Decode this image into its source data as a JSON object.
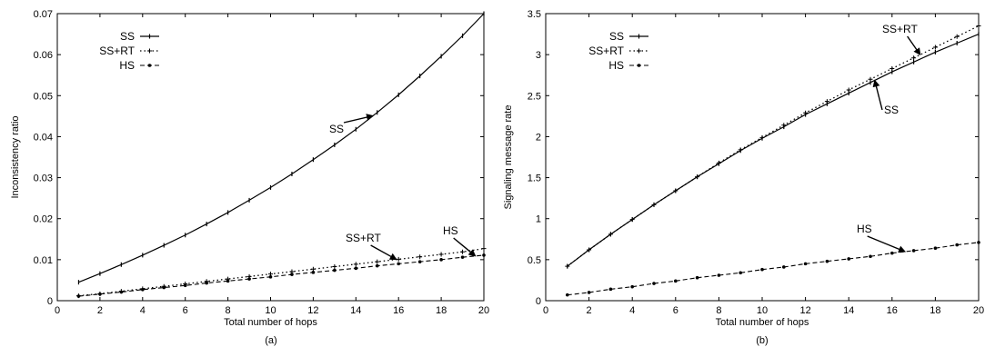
{
  "chart_data": [
    {
      "type": "line",
      "caption": "(a)",
      "xlabel": "Total number of hops",
      "ylabel": "Inconsistency ratio",
      "xlim": [
        0,
        20
      ],
      "ylim": [
        0,
        0.07
      ],
      "xticks": [
        0,
        2,
        4,
        6,
        8,
        10,
        12,
        14,
        16,
        18,
        20
      ],
      "xtick_labels": [
        "0",
        "2",
        "4",
        "6",
        "8",
        "10",
        "12",
        "14",
        "16",
        "18",
        "20"
      ],
      "yticks": [
        0,
        0.01,
        0.02,
        0.03,
        0.04,
        0.05,
        0.06,
        0.07
      ],
      "ytick_labels": [
        "0",
        "0.01",
        "0.02",
        "0.03",
        "0.04",
        "0.05",
        "0.06",
        "0.07"
      ],
      "grid": false,
      "legend_position": "top-left",
      "x": [
        1,
        2,
        3,
        4,
        5,
        6,
        7,
        8,
        9,
        10,
        11,
        12,
        13,
        14,
        15,
        16,
        17,
        18,
        19,
        20
      ],
      "series": [
        {
          "name": "SS",
          "style": "solid",
          "marker": "tick",
          "values": [
            0.0045,
            0.0066,
            0.0088,
            0.0111,
            0.0135,
            0.016,
            0.0187,
            0.0215,
            0.0245,
            0.0276,
            0.0309,
            0.0344,
            0.038,
            0.0418,
            0.0459,
            0.0502,
            0.0548,
            0.0596,
            0.0646,
            0.07
          ]
        },
        {
          "name": "SS+RT",
          "style": "dotted",
          "marker": "plus",
          "values": [
            0.0012,
            0.0017,
            0.0023,
            0.0029,
            0.0035,
            0.0041,
            0.0047,
            0.0053,
            0.0059,
            0.0065,
            0.0071,
            0.0077,
            0.0083,
            0.0089,
            0.0095,
            0.0101,
            0.0107,
            0.0113,
            0.0119,
            0.0127
          ]
        },
        {
          "name": "HS",
          "style": "dashed",
          "marker": "dot",
          "values": [
            0.0011,
            0.0016,
            0.0021,
            0.0027,
            0.0032,
            0.0037,
            0.0043,
            0.0048,
            0.0053,
            0.0058,
            0.0064,
            0.0069,
            0.0074,
            0.0079,
            0.0085,
            0.009,
            0.0095,
            0.01,
            0.0106,
            0.0111
          ]
        }
      ],
      "annotations": [
        {
          "text": "SS",
          "series": "SS",
          "x": 14.8
        },
        {
          "text": "SS+RT",
          "series": "SS+RT",
          "x": 15.9
        },
        {
          "text": "HS",
          "series": "HS",
          "x": 19.6
        }
      ]
    },
    {
      "type": "line",
      "caption": "(b)",
      "xlabel": "Total number of hops",
      "ylabel": "Signaling message rate",
      "xlim": [
        0,
        20
      ],
      "ylim": [
        0,
        3.5
      ],
      "xticks": [
        0,
        2,
        4,
        6,
        8,
        10,
        12,
        14,
        16,
        18,
        20
      ],
      "xtick_labels": [
        "0",
        "2",
        "4",
        "6",
        "8",
        "10",
        "12",
        "14",
        "16",
        "18",
        "20"
      ],
      "yticks": [
        0,
        0.5,
        1,
        1.5,
        2,
        2.5,
        3,
        3.5
      ],
      "ytick_labels": [
        "0",
        "0.5",
        "1",
        "1.5",
        "2",
        "2.5",
        "3",
        "3.5"
      ],
      "grid": false,
      "legend_position": "top-left",
      "x": [
        1,
        2,
        3,
        4,
        5,
        6,
        7,
        8,
        9,
        10,
        11,
        12,
        13,
        14,
        15,
        16,
        17,
        18,
        19,
        20
      ],
      "series": [
        {
          "name": "SS",
          "style": "solid",
          "marker": "tick",
          "values": [
            0.42,
            0.62,
            0.81,
            0.99,
            1.17,
            1.34,
            1.51,
            1.67,
            1.83,
            1.98,
            2.12,
            2.27,
            2.4,
            2.53,
            2.66,
            2.79,
            2.91,
            3.03,
            3.14,
            3.25
          ]
        },
        {
          "name": "SS+RT",
          "style": "dotted",
          "marker": "plus",
          "values": [
            0.42,
            0.62,
            0.81,
            0.99,
            1.17,
            1.34,
            1.51,
            1.68,
            1.84,
            1.99,
            2.14,
            2.29,
            2.43,
            2.57,
            2.7,
            2.83,
            2.96,
            3.09,
            3.22,
            3.35
          ]
        },
        {
          "name": "HS",
          "style": "dashed",
          "marker": "dot",
          "values": [
            0.07,
            0.1,
            0.14,
            0.17,
            0.21,
            0.24,
            0.28,
            0.31,
            0.34,
            0.38,
            0.41,
            0.45,
            0.48,
            0.51,
            0.54,
            0.58,
            0.61,
            0.64,
            0.68,
            0.71
          ]
        }
      ],
      "annotations": [
        {
          "text": "SS+RT",
          "series": "SS+RT",
          "x": 17.3
        },
        {
          "text": "SS",
          "series": "SS",
          "x": 15.2
        },
        {
          "text": "HS",
          "series": "HS",
          "x": 16.6
        }
      ]
    }
  ]
}
